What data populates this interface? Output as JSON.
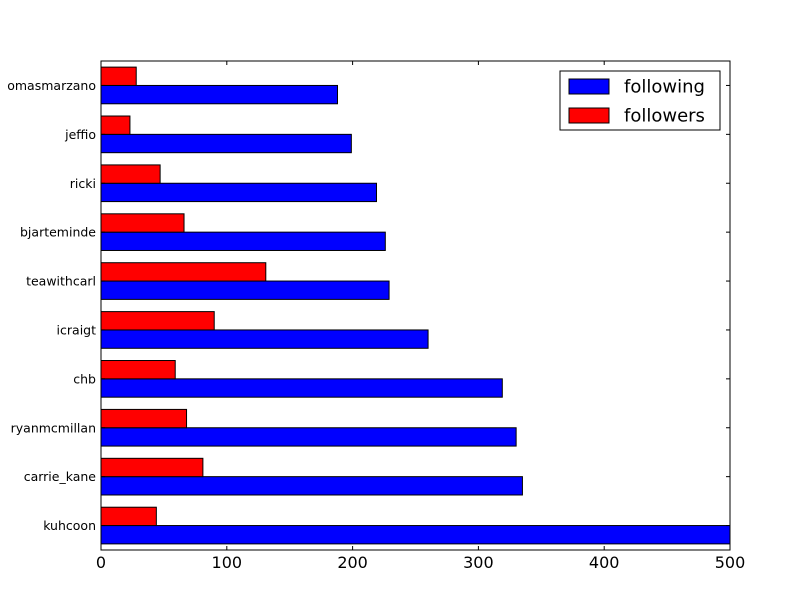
{
  "chart_data": {
    "type": "bar",
    "orientation": "horizontal",
    "categories": [
      "kuhcoon",
      "carrie_kane",
      "ryanmcmillan",
      "chb",
      "icraigt",
      "teawithcarl",
      "bjarteminde",
      "ricki",
      "jeffio",
      "thomasmarzano"
    ],
    "category_labels": [
      "kuhcoon",
      "carrie_kane",
      "ryanmcmillan",
      "chb",
      "icraigt",
      "teawithcarl",
      "bjarteminde",
      "ricki",
      "jeffio",
      "omasmarzano"
    ],
    "series": [
      {
        "name": "following",
        "color": "#0000ff",
        "values": [
          500,
          335,
          330,
          319,
          260,
          229,
          226,
          219,
          199,
          188
        ]
      },
      {
        "name": "followers",
        "color": "#ff0000",
        "values": [
          44,
          81,
          68,
          59,
          90,
          131,
          66,
          47,
          23,
          28
        ]
      }
    ],
    "xlim": [
      0,
      500
    ],
    "xticks": [
      0,
      100,
      200,
      300,
      400,
      500
    ],
    "xtick_labels": [
      "0",
      "100",
      "200",
      "300",
      "400",
      "500"
    ],
    "title": "",
    "xlabel": "",
    "ylabel": "",
    "grid": false,
    "legend_position": "top-right"
  }
}
